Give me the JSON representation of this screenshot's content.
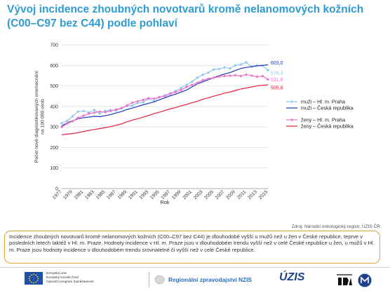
{
  "header": {
    "title": "Vývoj incidence zhoubných novotvarů kromě nelanomových kožních (C00–C97 bez C44) podle pohlaví"
  },
  "chart_data": {
    "type": "line",
    "title": "",
    "xlabel": "Rok",
    "ylabel": "Počet nově diagnostikovaných onemocnění na 100 000 osob",
    "ylim": [
      0,
      700
    ],
    "y_ticks": [
      "0",
      "100",
      "200",
      "300",
      "400",
      "500",
      "600",
      "700"
    ],
    "x": [
      1977,
      1978,
      1979,
      1980,
      1981,
      1982,
      1983,
      1984,
      1985,
      1986,
      1987,
      1988,
      1989,
      1990,
      1991,
      1992,
      1993,
      1994,
      1995,
      1996,
      1997,
      1998,
      1999,
      2000,
      2001,
      2002,
      2003,
      2004,
      2005,
      2006,
      2007,
      2008,
      2009,
      2010,
      2011,
      2012,
      2013,
      2014,
      2015
    ],
    "x_tick_labels": [
      "1977",
      "1979",
      "1981",
      "1983",
      "1985",
      "1987",
      "1989",
      "1991",
      "1993",
      "1995",
      "1997",
      "1999",
      "2001",
      "2003",
      "2005",
      "2007",
      "2009",
      "2011",
      "2013",
      "2015"
    ],
    "grid": true,
    "legend_position": "right",
    "series": [
      {
        "name": "muži – Hl. m. Praha",
        "color": "#8ec9ee",
        "marker": "diamond",
        "end_label": "576,3",
        "values": [
          318,
          330,
          352,
          375,
          378,
          370,
          383,
          365,
          378,
          382,
          380,
          390,
          402,
          404,
          417,
          420,
          438,
          425,
          446,
          454,
          464,
          476,
          490,
          505,
          520,
          540,
          555,
          565,
          580,
          583,
          590,
          585,
          600,
          605,
          615,
          593,
          600,
          598,
          576.3
        ]
      },
      {
        "name": "muži – Česká republika",
        "color": "#1b36b8",
        "marker": "none",
        "end_label": "603,0",
        "values": [
          305,
          320,
          330,
          340,
          345,
          348,
          352,
          350,
          355,
          360,
          368,
          375,
          385,
          392,
          400,
          408,
          415,
          422,
          432,
          442,
          452,
          460,
          470,
          480,
          495,
          510,
          520,
          530,
          540,
          550,
          558,
          565,
          575,
          585,
          590,
          594,
          598,
          600,
          603.0
        ]
      },
      {
        "name": "ženy – Hl. m. Praha",
        "color": "#ef73c8",
        "marker": "diamond",
        "end_label": "531,6",
        "values": [
          300,
          316,
          328,
          345,
          355,
          365,
          370,
          375,
          372,
          378,
          385,
          392,
          405,
          418,
          425,
          432,
          440,
          438,
          445,
          450,
          462,
          470,
          480,
          495,
          505,
          515,
          528,
          535,
          540,
          545,
          548,
          550,
          552,
          548,
          555,
          550,
          545,
          548,
          531.6
        ]
      },
      {
        "name": "ženy – Česká republika",
        "color": "#e8203a",
        "marker": "none",
        "end_label": "505,8",
        "values": [
          262,
          265,
          268,
          272,
          278,
          283,
          288,
          292,
          297,
          302,
          308,
          315,
          325,
          333,
          340,
          348,
          356,
          365,
          372,
          380,
          388,
          395,
          403,
          410,
          418,
          425,
          435,
          442,
          450,
          457,
          465,
          470,
          478,
          485,
          490,
          495,
          500,
          503,
          505.8
        ]
      }
    ]
  },
  "source_note": "Zdroj: Národní onkologický registr, ÚZIS ČR",
  "description": "Incidence zhoubných novotvarů kromě nelanomových kožních (C00–C97 bez C44) je dlouhodobě vyšší u mužů než u žen v České republice, teprve v posledních letech taktéž v Hl. m. Praze. Hodnoty incidence v Hl. m. Praze jsou v dlouhodobém trendu vyšší než v celé České republice u žen, u mužů v Hl. m. Praze jsou hodnoty incidence v dlouhodobém trendu srovnatelné či vyšší než v celé České republice.",
  "footer": {
    "eu_lines": [
      "Evropská unie",
      "Evropský sociální fond",
      "Operační program Zaměstnanost"
    ],
    "nzis_label": "Regionální zpravodajství NZIS",
    "uzis_logo_text": "ÚZIS"
  }
}
